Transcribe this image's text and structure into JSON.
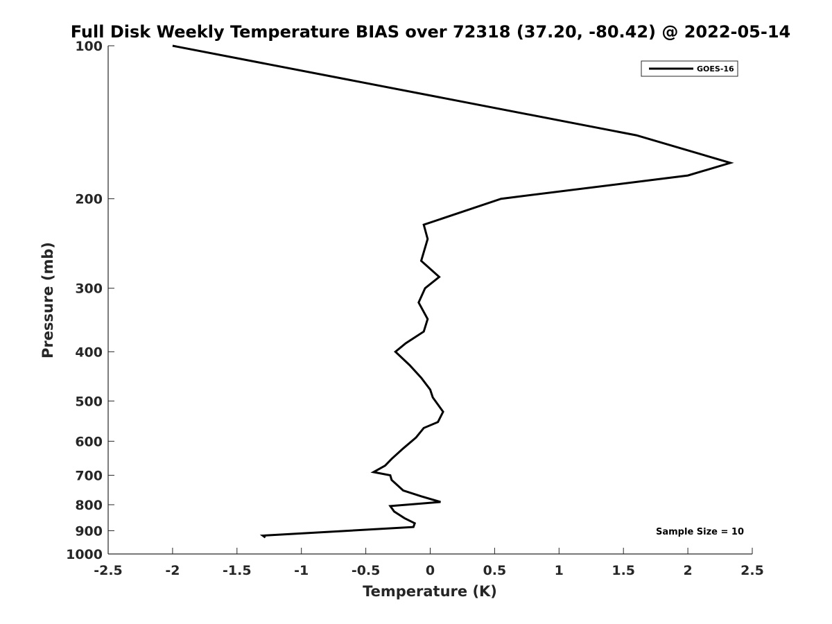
{
  "chart_data": {
    "type": "line",
    "title": "Full Disk Weekly Temperature BIAS over 72318 (37.20, -80.42) @ 2022-05-14",
    "xlabel": "Temperature (K)",
    "ylabel": "Pressure (mb)",
    "xlim": [
      -2.5,
      2.5
    ],
    "ylim": [
      100,
      1000
    ],
    "y_scale": "log",
    "y_reversed": true,
    "x_ticks": [
      "-2.5",
      "-2",
      "-1.5",
      "-1",
      "-0.5",
      "0",
      "0.5",
      "1",
      "1.5",
      "2",
      "2.5"
    ],
    "y_ticks": [
      "100",
      "200",
      "300",
      "400",
      "500",
      "600",
      "700",
      "800",
      "900",
      "1000"
    ],
    "grid": false,
    "legend_position": "top-right",
    "series": [
      {
        "name": "GOES-16",
        "color": "#000000",
        "points": [
          {
            "x": -2.0,
            "p": 100
          },
          {
            "x": 1.6,
            "p": 150
          },
          {
            "x": 2.33,
            "p": 170
          },
          {
            "x": 2.0,
            "p": 180
          },
          {
            "x": 0.55,
            "p": 200
          },
          {
            "x": -0.05,
            "p": 225
          },
          {
            "x": -0.02,
            "p": 240
          },
          {
            "x": -0.07,
            "p": 265
          },
          {
            "x": 0.07,
            "p": 285
          },
          {
            "x": -0.04,
            "p": 300
          },
          {
            "x": -0.09,
            "p": 320
          },
          {
            "x": -0.02,
            "p": 345
          },
          {
            "x": -0.05,
            "p": 365
          },
          {
            "x": -0.19,
            "p": 385
          },
          {
            "x": -0.27,
            "p": 400
          },
          {
            "x": -0.16,
            "p": 425
          },
          {
            "x": -0.07,
            "p": 450
          },
          {
            "x": 0.0,
            "p": 475
          },
          {
            "x": 0.02,
            "p": 492
          },
          {
            "x": 0.1,
            "p": 525
          },
          {
            "x": 0.06,
            "p": 550
          },
          {
            "x": -0.05,
            "p": 565
          },
          {
            "x": -0.11,
            "p": 590
          },
          {
            "x": -0.21,
            "p": 620
          },
          {
            "x": -0.3,
            "p": 650
          },
          {
            "x": -0.35,
            "p": 670
          },
          {
            "x": -0.44,
            "p": 690
          },
          {
            "x": -0.31,
            "p": 700
          },
          {
            "x": -0.3,
            "p": 715
          },
          {
            "x": -0.21,
            "p": 750
          },
          {
            "x": -0.07,
            "p": 770
          },
          {
            "x": 0.08,
            "p": 790
          },
          {
            "x": -0.31,
            "p": 805
          },
          {
            "x": -0.28,
            "p": 825
          },
          {
            "x": -0.2,
            "p": 850
          },
          {
            "x": -0.12,
            "p": 870
          },
          {
            "x": -0.13,
            "p": 885
          },
          {
            "x": -1.3,
            "p": 920
          },
          {
            "x": -1.28,
            "p": 928
          }
        ]
      }
    ],
    "annotation": "Sample Size = 10"
  }
}
